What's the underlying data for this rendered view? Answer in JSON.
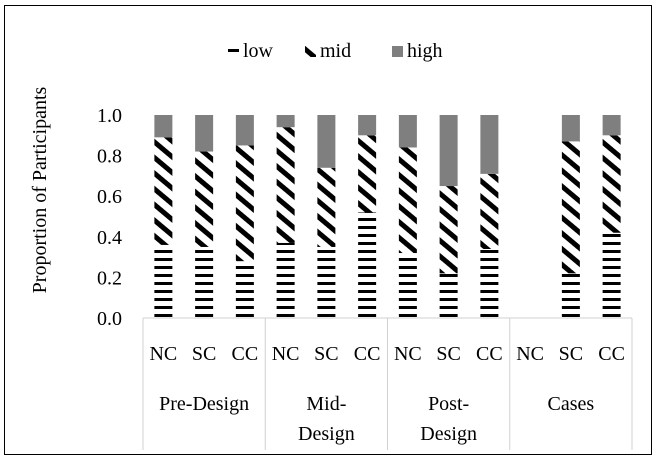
{
  "chart_data": {
    "type": "bar",
    "stacked": true,
    "title": "",
    "ylabel": "Proportion of Participants",
    "ylim": [
      0,
      1.0
    ],
    "yticks": [
      "0.0",
      "0.2",
      "0.4",
      "0.6",
      "0.8",
      "1.0"
    ],
    "legend_position": "top",
    "groups": [
      {
        "label_lines": [
          "Pre-Design"
        ],
        "categories": [
          "NC",
          "SC",
          "CC"
        ]
      },
      {
        "label_lines": [
          "Mid-",
          "Design"
        ],
        "categories": [
          "NC",
          "SC",
          "CC"
        ]
      },
      {
        "label_lines": [
          "Post-",
          "Design"
        ],
        "categories": [
          "NC",
          "SC",
          "CC"
        ]
      },
      {
        "label_lines": [
          "Cases"
        ],
        "categories": [
          "NC",
          "SC",
          "CC"
        ]
      }
    ],
    "series": [
      {
        "name": "low",
        "pattern": "horizontal-dash",
        "values": [
          0.36,
          0.35,
          0.28,
          0.37,
          0.35,
          0.52,
          0.32,
          0.22,
          0.34,
          0.0,
          0.22,
          0.42
        ]
      },
      {
        "name": "mid",
        "pattern": "diagonal-stripe",
        "values": [
          0.53,
          0.47,
          0.57,
          0.57,
          0.39,
          0.38,
          0.52,
          0.43,
          0.37,
          0.0,
          0.65,
          0.48
        ]
      },
      {
        "name": "high",
        "color": "#7f7f7f",
        "values": [
          0.11,
          0.18,
          0.15,
          0.06,
          0.26,
          0.1,
          0.16,
          0.35,
          0.29,
          0.0,
          0.13,
          0.1
        ]
      }
    ]
  }
}
